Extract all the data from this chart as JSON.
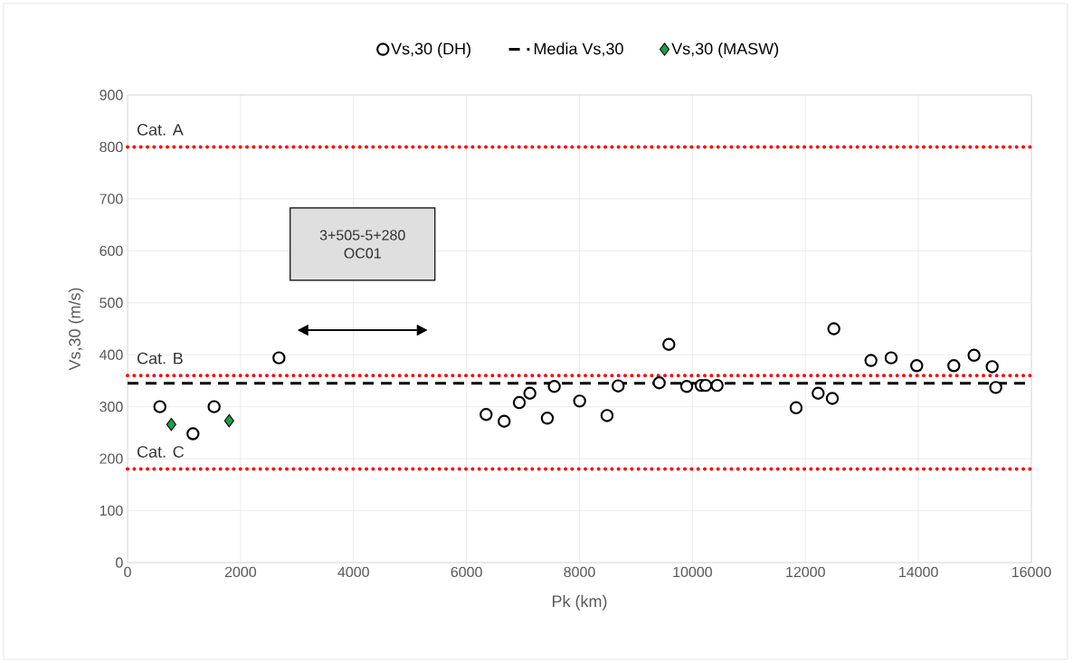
{
  "chart_data": {
    "type": "scatter",
    "xlabel": "Pk (km)",
    "ylabel": "Vs,30 (m/s)",
    "xlim": [
      0,
      16000
    ],
    "xticks": [
      0,
      2000,
      4000,
      6000,
      8000,
      10000,
      12000,
      14000,
      16000
    ],
    "ylim": [
      0,
      900
    ],
    "yticks": [
      0,
      100,
      200,
      300,
      400,
      500,
      600,
      700,
      800,
      900
    ],
    "grid": true,
    "legend": "top",
    "series": [
      {
        "name": "Vs,30 (DH)",
        "marker": "circle",
        "color": "#000000",
        "x": [
          572,
          1158,
          1532,
          2680,
          6347,
          6667,
          6935,
          7122,
          7431,
          7554,
          8003,
          8488,
          8685,
          9412,
          9582,
          9898,
          10154,
          10234,
          10437,
          11835,
          12225,
          12476,
          12503,
          13160,
          13517,
          13970,
          14627,
          14985,
          15306,
          15370
        ],
        "values": [
          300,
          248,
          300,
          394,
          285,
          272,
          308,
          326,
          278,
          339,
          311,
          283,
          340,
          346,
          420,
          339,
          341,
          341,
          341,
          298,
          326,
          316,
          450,
          389,
          394,
          379,
          379,
          399,
          377,
          337
        ]
      },
      {
        "name": "Media Vs,30",
        "type": "line",
        "line_style": "dashed",
        "marker": "none",
        "color": "#000000",
        "x": [
          0,
          16000
        ],
        "values": [
          345,
          345
        ]
      },
      {
        "name": "Vs,30 (MASW)",
        "marker": "diamond",
        "color": "#1e9e4a",
        "x": [
          774,
          1799
        ],
        "values": [
          266,
          273
        ]
      }
    ],
    "ref_lines": [
      {
        "axis": "y",
        "value": 800,
        "label": "Cat. A",
        "color": "#ff0000",
        "line_style": "dotted"
      },
      {
        "axis": "y",
        "value": 360,
        "label": "Cat. B",
        "color": "#ff0000",
        "line_style": "dotted"
      },
      {
        "axis": "y",
        "value": 180,
        "label": "Cat. C",
        "color": "#ff0000",
        "line_style": "dotted"
      }
    ],
    "annotations": [
      "3+505-5+280 OC01"
    ]
  }
}
